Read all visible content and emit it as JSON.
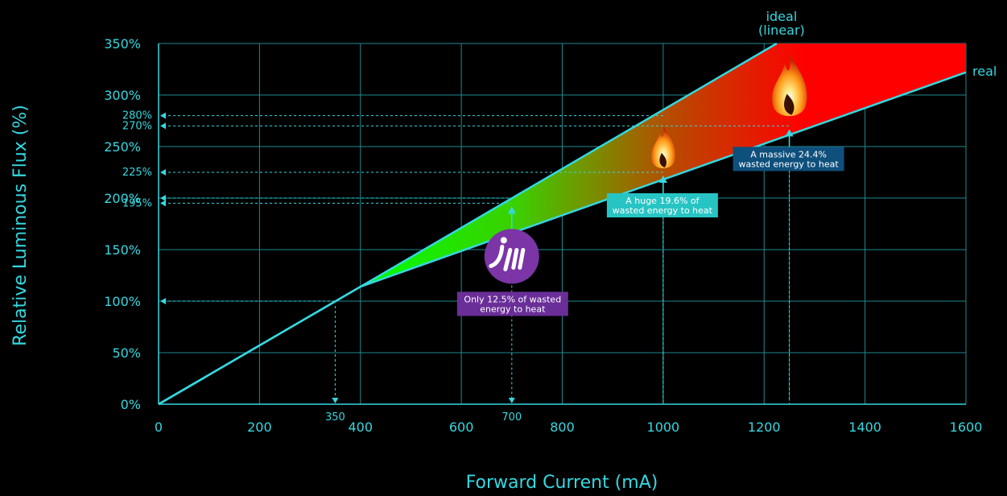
{
  "chart_data": {
    "type": "line",
    "xlabel": "Forward Current (mA)",
    "ylabel": "Relative Luminous Flux (%)",
    "xlim": [
      0,
      1600
    ],
    "ylim": [
      0,
      350
    ],
    "x_ticks": [
      "0",
      "200",
      "400",
      "600",
      "800",
      "1000",
      "1200",
      "1400",
      "1600"
    ],
    "y_ticks": [
      "0%",
      "50%",
      "100%",
      "150%",
      "200%",
      "250%",
      "300%",
      "350%"
    ],
    "grid": true,
    "series": [
      {
        "name": "ideal (linear)",
        "label_lines": [
          "ideal",
          "(linear)"
        ],
        "x": [
          0,
          400,
          1225
        ],
        "y": [
          0,
          114,
          350
        ]
      },
      {
        "name": "real",
        "label_lines": [
          "real"
        ],
        "x": [
          0,
          400,
          1600
        ],
        "y": [
          0,
          114,
          322
        ]
      }
    ],
    "reference_lines": {
      "x": [
        {
          "value": 350,
          "label": "350",
          "to_y": 100
        },
        {
          "value": 700,
          "label": "700",
          "to_y": 195
        },
        {
          "value": 1000,
          "label": "1000",
          "to_y": 225
        },
        {
          "value": 1250,
          "label": "1250",
          "to_y": 270
        }
      ],
      "y": [
        {
          "value": 100,
          "label": "100%",
          "to_x": 350
        },
        {
          "value": 195,
          "label": "195%",
          "to_x": 700
        },
        {
          "value": 200,
          "label": "200%",
          "to_x": 700
        },
        {
          "value": 225,
          "label": "225%",
          "to_x": 1000
        },
        {
          "value": 270,
          "label": "270%",
          "to_x": 1250
        },
        {
          "value": 280,
          "label": "280%",
          "to_x": 1000
        }
      ]
    },
    "annotations": [
      {
        "x": 700,
        "y": 195,
        "lines": [
          "Only 12.5% of wasted",
          "energy to heat"
        ],
        "color": "#6a2e98"
      },
      {
        "x": 1000,
        "y": 225,
        "lines": [
          "A huge 19.6% of",
          "wasted energy to heat"
        ],
        "color": "#27c4c4"
      },
      {
        "x": 1250,
        "y": 270,
        "lines": [
          "A massive 24.4%",
          "wasted energy to heat"
        ],
        "color": "#0f4f7c"
      }
    ],
    "logo_icon": "jm-logo-icon",
    "flame_icons": [
      "flame-icon",
      "flame-icon"
    ],
    "colors": {
      "axis": "#35d8e0",
      "grid": "#1e8a90",
      "line": "#35d8e0",
      "fill_gradient": [
        "#00ff00",
        "#ff0000"
      ]
    }
  }
}
